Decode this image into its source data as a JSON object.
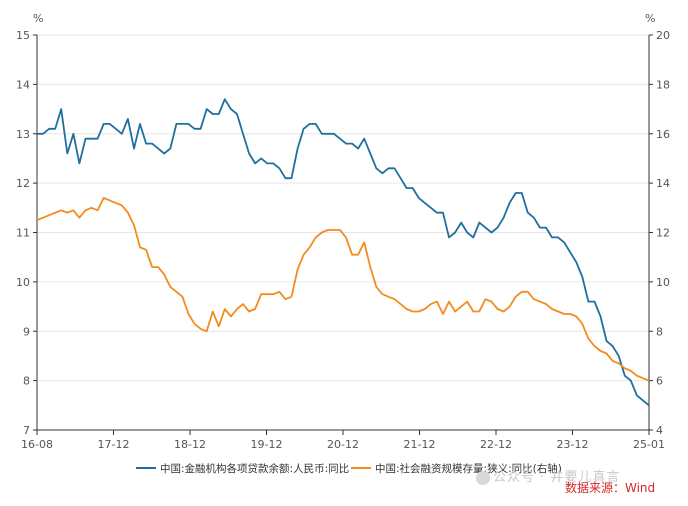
{
  "units": {
    "left": "%",
    "right": "%"
  },
  "legend": {
    "location": "bottom"
  },
  "source_text": "数据来源：Wind",
  "watermark": {
    "text": "公众号 · 井要儿真言",
    "icon": "wechat-icon"
  },
  "colors": {
    "series1": "#1f6f9f",
    "series2": "#f28c1d",
    "axis": "#333333",
    "grid": "#e6e6e6"
  },
  "chart_data": {
    "type": "line",
    "x_ticks": [
      "16-08",
      "17-12",
      "18-12",
      "19-12",
      "20-12",
      "21-12",
      "22-12",
      "23-12",
      "25-01"
    ],
    "x_range": [
      "2016-08",
      "2025-01"
    ],
    "y_left": {
      "range": [
        7,
        15
      ],
      "ticks": [
        7,
        8,
        9,
        10,
        11,
        12,
        13,
        14,
        15
      ]
    },
    "y_right": {
      "range": [
        4,
        20
      ],
      "ticks": [
        4,
        6,
        8,
        10,
        12,
        14,
        16,
        18,
        20
      ]
    },
    "grid": "horizontal",
    "series": [
      {
        "name": "中国:金融机构各项贷款余额:人民币:同比",
        "axis": "left",
        "color": "#1f6f9f",
        "points": [
          [
            "2016-08",
            13.0
          ],
          [
            "2016-09",
            13.0
          ],
          [
            "2016-10",
            13.1
          ],
          [
            "2016-11",
            13.1
          ],
          [
            "2016-12",
            13.5
          ],
          [
            "2017-01",
            12.6
          ],
          [
            "2017-02",
            13.0
          ],
          [
            "2017-03",
            12.4
          ],
          [
            "2017-04",
            12.9
          ],
          [
            "2017-05",
            12.9
          ],
          [
            "2017-06",
            12.9
          ],
          [
            "2017-07",
            13.2
          ],
          [
            "2017-08",
            13.2
          ],
          [
            "2017-09",
            13.1
          ],
          [
            "2017-10",
            13.0
          ],
          [
            "2017-11",
            13.3
          ],
          [
            "2017-12",
            12.7
          ],
          [
            "2018-01",
            13.2
          ],
          [
            "2018-02",
            12.8
          ],
          [
            "2018-03",
            12.8
          ],
          [
            "2018-04",
            12.7
          ],
          [
            "2018-05",
            12.6
          ],
          [
            "2018-06",
            12.7
          ],
          [
            "2018-07",
            13.2
          ],
          [
            "2018-08",
            13.2
          ],
          [
            "2018-09",
            13.2
          ],
          [
            "2018-10",
            13.1
          ],
          [
            "2018-11",
            13.1
          ],
          [
            "2018-12",
            13.5
          ],
          [
            "2019-01",
            13.4
          ],
          [
            "2019-02",
            13.4
          ],
          [
            "2019-03",
            13.7
          ],
          [
            "2019-04",
            13.5
          ],
          [
            "2019-05",
            13.4
          ],
          [
            "2019-06",
            13.0
          ],
          [
            "2019-07",
            12.6
          ],
          [
            "2019-08",
            12.4
          ],
          [
            "2019-09",
            12.5
          ],
          [
            "2019-10",
            12.4
          ],
          [
            "2019-11",
            12.4
          ],
          [
            "2019-12",
            12.3
          ],
          [
            "2020-01",
            12.1
          ],
          [
            "2020-02",
            12.1
          ],
          [
            "2020-03",
            12.7
          ],
          [
            "2020-04",
            13.1
          ],
          [
            "2020-05",
            13.2
          ],
          [
            "2020-06",
            13.2
          ],
          [
            "2020-07",
            13.0
          ],
          [
            "2020-08",
            13.0
          ],
          [
            "2020-09",
            13.0
          ],
          [
            "2020-10",
            12.9
          ],
          [
            "2020-11",
            12.8
          ],
          [
            "2020-12",
            12.8
          ],
          [
            "2021-01",
            12.7
          ],
          [
            "2021-02",
            12.9
          ],
          [
            "2021-03",
            12.6
          ],
          [
            "2021-04",
            12.3
          ],
          [
            "2021-05",
            12.2
          ],
          [
            "2021-06",
            12.3
          ],
          [
            "2021-07",
            12.3
          ],
          [
            "2021-08",
            12.1
          ],
          [
            "2021-09",
            11.9
          ],
          [
            "2021-10",
            11.9
          ],
          [
            "2021-11",
            11.7
          ],
          [
            "2021-12",
            11.6
          ],
          [
            "2022-01",
            11.5
          ],
          [
            "2022-02",
            11.4
          ],
          [
            "2022-03",
            11.4
          ],
          [
            "2022-04",
            10.9
          ],
          [
            "2022-05",
            11.0
          ],
          [
            "2022-06",
            11.2
          ],
          [
            "2022-07",
            11.0
          ],
          [
            "2022-08",
            10.9
          ],
          [
            "2022-09",
            11.2
          ],
          [
            "2022-10",
            11.1
          ],
          [
            "2022-11",
            11.0
          ],
          [
            "2022-12",
            11.1
          ],
          [
            "2023-01",
            11.3
          ],
          [
            "2023-02",
            11.6
          ],
          [
            "2023-03",
            11.8
          ],
          [
            "2023-04",
            11.8
          ],
          [
            "2023-05",
            11.4
          ],
          [
            "2023-06",
            11.3
          ],
          [
            "2023-07",
            11.1
          ],
          [
            "2023-08",
            11.1
          ],
          [
            "2023-09",
            10.9
          ],
          [
            "2023-10",
            10.9
          ],
          [
            "2023-11",
            10.8
          ],
          [
            "2023-12",
            10.6
          ],
          [
            "2024-01",
            10.4
          ],
          [
            "2024-02",
            10.1
          ],
          [
            "2024-03",
            9.6
          ],
          [
            "2024-04",
            9.6
          ],
          [
            "2024-05",
            9.3
          ],
          [
            "2024-06",
            8.8
          ],
          [
            "2024-07",
            8.7
          ],
          [
            "2024-08",
            8.5
          ],
          [
            "2024-09",
            8.1
          ],
          [
            "2024-10",
            8.0
          ],
          [
            "2024-11",
            7.7
          ],
          [
            "2024-12",
            7.6
          ],
          [
            "2025-01",
            7.5
          ]
        ]
      },
      {
        "name": "中国:社会融资规模存量:狭义:同比(右轴)",
        "axis": "right",
        "color": "#f28c1d",
        "points": [
          [
            "2016-08",
            12.5
          ],
          [
            "2016-09",
            12.6
          ],
          [
            "2016-10",
            12.7
          ],
          [
            "2016-11",
            12.8
          ],
          [
            "2016-12",
            12.9
          ],
          [
            "2017-01",
            12.8
          ],
          [
            "2017-02",
            12.9
          ],
          [
            "2017-03",
            12.6
          ],
          [
            "2017-04",
            12.9
          ],
          [
            "2017-05",
            13.0
          ],
          [
            "2017-06",
            12.9
          ],
          [
            "2017-07",
            13.4
          ],
          [
            "2017-08",
            13.3
          ],
          [
            "2017-09",
            13.2
          ],
          [
            "2017-10",
            13.1
          ],
          [
            "2017-11",
            12.8
          ],
          [
            "2017-12",
            12.3
          ],
          [
            "2018-01",
            11.4
          ],
          [
            "2018-02",
            11.3
          ],
          [
            "2018-03",
            10.6
          ],
          [
            "2018-04",
            10.6
          ],
          [
            "2018-05",
            10.3
          ],
          [
            "2018-06",
            9.8
          ],
          [
            "2018-07",
            9.6
          ],
          [
            "2018-08",
            9.4
          ],
          [
            "2018-09",
            8.7
          ],
          [
            "2018-10",
            8.3
          ],
          [
            "2018-11",
            8.1
          ],
          [
            "2018-12",
            8.0
          ],
          [
            "2019-01",
            8.8
          ],
          [
            "2019-02",
            8.2
          ],
          [
            "2019-03",
            8.9
          ],
          [
            "2019-04",
            8.6
          ],
          [
            "2019-05",
            8.9
          ],
          [
            "2019-06",
            9.1
          ],
          [
            "2019-07",
            8.8
          ],
          [
            "2019-08",
            8.9
          ],
          [
            "2019-09",
            9.5
          ],
          [
            "2019-10",
            9.5
          ],
          [
            "2019-11",
            9.5
          ],
          [
            "2019-12",
            9.6
          ],
          [
            "2020-01",
            9.3
          ],
          [
            "2020-02",
            9.4
          ],
          [
            "2020-03",
            10.5
          ],
          [
            "2020-04",
            11.1
          ],
          [
            "2020-05",
            11.4
          ],
          [
            "2020-06",
            11.8
          ],
          [
            "2020-07",
            12.0
          ],
          [
            "2020-08",
            12.1
          ],
          [
            "2020-09",
            12.1
          ],
          [
            "2020-10",
            12.1
          ],
          [
            "2020-11",
            11.8
          ],
          [
            "2020-12",
            11.1
          ],
          [
            "2021-01",
            11.1
          ],
          [
            "2021-02",
            11.6
          ],
          [
            "2021-03",
            10.6
          ],
          [
            "2021-04",
            9.8
          ],
          [
            "2021-05",
            9.5
          ],
          [
            "2021-06",
            9.4
          ],
          [
            "2021-07",
            9.3
          ],
          [
            "2021-08",
            9.1
          ],
          [
            "2021-09",
            8.9
          ],
          [
            "2021-10",
            8.8
          ],
          [
            "2021-11",
            8.8
          ],
          [
            "2021-12",
            8.9
          ],
          [
            "2022-01",
            9.1
          ],
          [
            "2022-02",
            9.2
          ],
          [
            "2022-03",
            8.7
          ],
          [
            "2022-04",
            9.2
          ],
          [
            "2022-05",
            8.8
          ],
          [
            "2022-06",
            9.0
          ],
          [
            "2022-07",
            9.2
          ],
          [
            "2022-08",
            8.8
          ],
          [
            "2022-09",
            8.8
          ],
          [
            "2022-10",
            9.3
          ],
          [
            "2022-11",
            9.2
          ],
          [
            "2022-12",
            8.9
          ],
          [
            "2023-01",
            8.8
          ],
          [
            "2023-02",
            9.0
          ],
          [
            "2023-03",
            9.4
          ],
          [
            "2023-04",
            9.6
          ],
          [
            "2023-05",
            9.6
          ],
          [
            "2023-06",
            9.3
          ],
          [
            "2023-07",
            9.2
          ],
          [
            "2023-08",
            9.1
          ],
          [
            "2023-09",
            8.9
          ],
          [
            "2023-10",
            8.8
          ],
          [
            "2023-11",
            8.7
          ],
          [
            "2023-12",
            8.7
          ],
          [
            "2024-01",
            8.6
          ],
          [
            "2024-02",
            8.3
          ],
          [
            "2024-03",
            7.7
          ],
          [
            "2024-04",
            7.4
          ],
          [
            "2024-05",
            7.2
          ],
          [
            "2024-06",
            7.1
          ],
          [
            "2024-07",
            6.8
          ],
          [
            "2024-08",
            6.7
          ],
          [
            "2024-09",
            6.5
          ],
          [
            "2024-10",
            6.4
          ],
          [
            "2024-11",
            6.2
          ],
          [
            "2024-12",
            6.1
          ],
          [
            "2025-01",
            6.0
          ]
        ]
      }
    ]
  }
}
